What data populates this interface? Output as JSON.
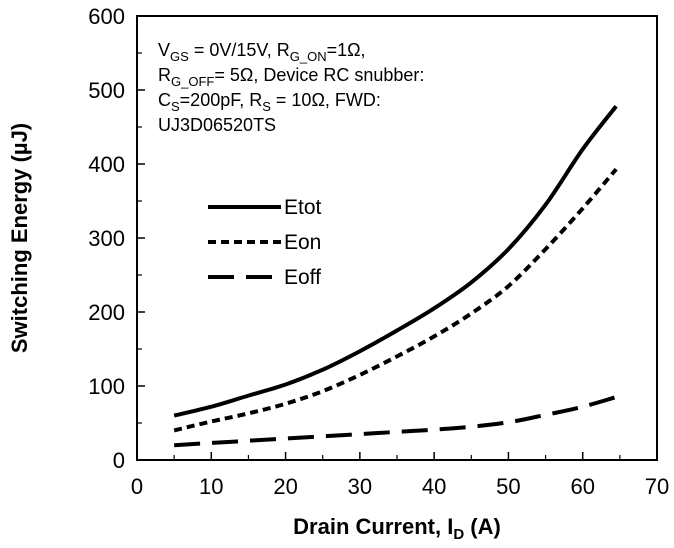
{
  "chart_data": {
    "type": "line",
    "xlabel": "Drain Current, I",
    "xlabel_sub": "D",
    "xlabel_suffix": " (A)",
    "ylabel": "Switching Energy (µJ)",
    "xlim": [
      0,
      70
    ],
    "ylim": [
      0,
      600
    ],
    "xticks": [
      0,
      10,
      20,
      30,
      40,
      50,
      60,
      70
    ],
    "yticks": [
      0,
      100,
      200,
      300,
      400,
      500,
      600
    ],
    "grid": false,
    "legend_position": "upper-left",
    "annotation_lines": [
      [
        {
          "t": "V"
        },
        {
          "t": "GS",
          "sub": true
        },
        {
          "t": " = 0V/15V, R"
        },
        {
          "t": "G_ON",
          "sub": true
        },
        {
          "t": "=1Ω,"
        }
      ],
      [
        {
          "t": "R"
        },
        {
          "t": "G_OFF",
          "sub": true
        },
        {
          "t": "= 5Ω, Device RC snubber:"
        }
      ],
      [
        {
          "t": "C"
        },
        {
          "t": "S",
          "sub": true
        },
        {
          "t": "=200pF,   R"
        },
        {
          "t": "S",
          "sub": true
        },
        {
          "t": " = 10Ω,  FWD:"
        }
      ],
      [
        {
          "t": "UJ3D06520TS"
        }
      ]
    ],
    "series": [
      {
        "name": "Etot",
        "dash": "solid",
        "x": [
          5,
          10,
          15,
          20,
          25,
          30,
          35,
          40,
          45,
          50,
          55,
          60,
          64.5
        ],
        "y": [
          60,
          72,
          87,
          102,
          122,
          147,
          175,
          205,
          240,
          285,
          345,
          420,
          478
        ]
      },
      {
        "name": "Eon",
        "dash": "short",
        "x": [
          5,
          10,
          15,
          20,
          25,
          30,
          35,
          40,
          45,
          50,
          55,
          60,
          64.5
        ],
        "y": [
          40,
          52,
          63,
          76,
          93,
          115,
          140,
          167,
          198,
          235,
          285,
          340,
          393
        ]
      },
      {
        "name": "Eoff",
        "dash": "long",
        "x": [
          5,
          10,
          15,
          20,
          25,
          30,
          35,
          40,
          45,
          50,
          55,
          60,
          64.5
        ],
        "y": [
          20,
          23,
          26,
          29,
          32,
          35,
          38,
          41,
          45,
          51,
          61,
          72,
          85
        ]
      }
    ]
  }
}
